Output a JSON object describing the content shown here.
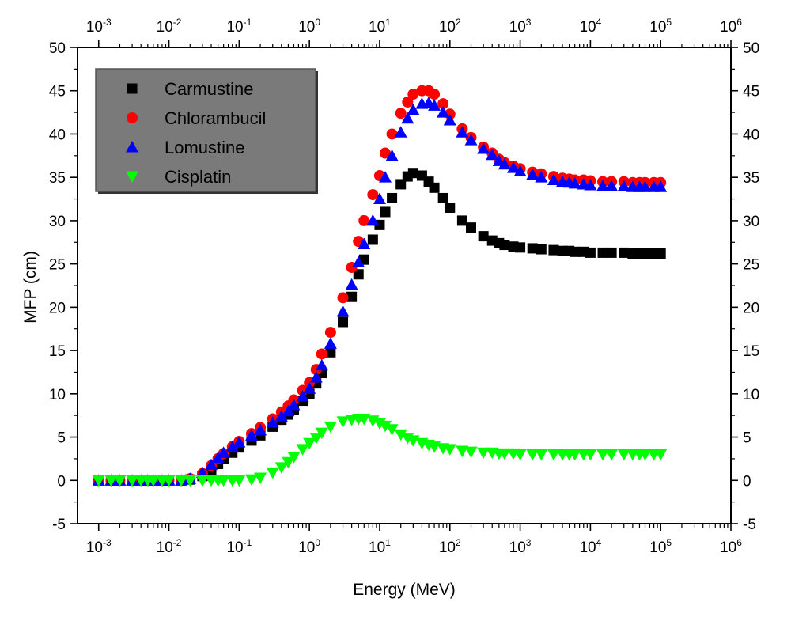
{
  "chart_data": {
    "type": "scatter",
    "title": "",
    "xlabel": "Energy (MeV)",
    "ylabel": "MFP (cm)",
    "xscale": "log",
    "xlim": [
      0.0005,
      1000000
    ],
    "ylim": [
      -5,
      50
    ],
    "x_ticks": [
      {
        "base": "10",
        "exp": "-3",
        "value": 0.001
      },
      {
        "base": "10",
        "exp": "-2",
        "value": 0.01
      },
      {
        "base": "10",
        "exp": "-1",
        "value": 0.1
      },
      {
        "base": "10",
        "exp": "0",
        "value": 1
      },
      {
        "base": "10",
        "exp": "1",
        "value": 10
      },
      {
        "base": "10",
        "exp": "2",
        "value": 100
      },
      {
        "base": "10",
        "exp": "3",
        "value": 1000
      },
      {
        "base": "10",
        "exp": "4",
        "value": 10000
      },
      {
        "base": "10",
        "exp": "5",
        "value": 100000
      },
      {
        "base": "10",
        "exp": "6",
        "value": 1000000
      }
    ],
    "y_ticks": [
      "-5",
      "0",
      "5",
      "10",
      "15",
      "20",
      "25",
      "30",
      "35",
      "40",
      "45",
      "50"
    ],
    "grid": false,
    "mirror_axes": true,
    "legend_position": "top-left",
    "legend_background": "#7a7a7a",
    "series": [
      {
        "name": "Carmustine",
        "color": "#000000",
        "marker": "square",
        "x": [
          0.001,
          0.0015,
          0.002,
          0.003,
          0.004,
          0.005,
          0.006,
          0.008,
          0.01,
          0.015,
          0.02,
          0.03,
          0.04,
          0.05,
          0.06,
          0.08,
          0.1,
          0.15,
          0.2,
          0.3,
          0.4,
          0.5,
          0.6,
          0.8,
          1,
          1.25,
          1.5,
          2,
          3,
          4,
          5,
          6,
          8,
          10,
          12,
          15,
          20,
          25,
          30,
          40,
          50,
          60,
          80,
          100,
          150,
          200,
          300,
          400,
          500,
          600,
          800,
          1000,
          1500,
          2000,
          3000,
          4000,
          5000,
          6000,
          8000,
          10000,
          15000,
          20000,
          30000,
          40000,
          50000,
          60000,
          80000,
          100000
        ],
        "values": [
          0,
          0,
          0,
          0,
          0,
          0,
          0,
          0,
          0,
          0,
          0.1,
          0.5,
          1.2,
          1.9,
          2.5,
          3.2,
          3.8,
          4.6,
          5.2,
          6.2,
          7.0,
          7.6,
          8.2,
          9.2,
          10.0,
          11.2,
          12.4,
          14.8,
          18.3,
          21.2,
          23.8,
          25.5,
          27.8,
          29.5,
          31.0,
          32.6,
          34.2,
          35.1,
          35.5,
          35.2,
          34.5,
          33.8,
          32.6,
          31.5,
          30.0,
          29.2,
          28.2,
          27.7,
          27.4,
          27.2,
          27.0,
          26.9,
          26.8,
          26.7,
          26.6,
          26.5,
          26.5,
          26.4,
          26.4,
          26.3,
          26.3,
          26.3,
          26.3,
          26.2,
          26.2,
          26.2,
          26.2,
          26.2
        ]
      },
      {
        "name": "Chlorambucil",
        "color": "#ff0000",
        "marker": "circle",
        "x": [
          0.001,
          0.0015,
          0.002,
          0.003,
          0.004,
          0.005,
          0.006,
          0.008,
          0.01,
          0.015,
          0.02,
          0.03,
          0.04,
          0.05,
          0.06,
          0.08,
          0.1,
          0.15,
          0.2,
          0.3,
          0.4,
          0.5,
          0.6,
          0.8,
          1,
          1.25,
          1.5,
          2,
          3,
          4,
          5,
          6,
          8,
          10,
          12,
          15,
          20,
          25,
          30,
          40,
          50,
          60,
          80,
          100,
          150,
          200,
          300,
          400,
          500,
          600,
          800,
          1000,
          1500,
          2000,
          3000,
          4000,
          5000,
          6000,
          8000,
          10000,
          15000,
          20000,
          30000,
          40000,
          50000,
          60000,
          80000,
          100000
        ],
        "values": [
          0,
          0,
          0,
          0,
          0,
          0,
          0,
          0,
          0,
          0,
          0.2,
          0.8,
          1.7,
          2.5,
          3.1,
          3.9,
          4.5,
          5.4,
          6.1,
          7.1,
          7.9,
          8.6,
          9.3,
          10.4,
          11.3,
          12.8,
          14.6,
          17.1,
          21.1,
          24.6,
          27.6,
          30.0,
          33.0,
          35.2,
          37.8,
          40.0,
          42.4,
          43.7,
          44.6,
          45.0,
          45.0,
          44.6,
          43.5,
          42.3,
          40.6,
          39.6,
          38.5,
          37.8,
          37.1,
          36.7,
          36.3,
          36.0,
          35.6,
          35.4,
          35.1,
          34.9,
          34.8,
          34.7,
          34.7,
          34.6,
          34.5,
          34.5,
          34.5,
          34.4,
          34.4,
          34.4,
          34.4,
          34.4
        ]
      },
      {
        "name": "Lomustine",
        "color": "#0000ff",
        "marker": "triangle-up",
        "x": [
          0.001,
          0.0015,
          0.002,
          0.003,
          0.004,
          0.005,
          0.006,
          0.008,
          0.01,
          0.015,
          0.02,
          0.03,
          0.04,
          0.05,
          0.06,
          0.08,
          0.1,
          0.15,
          0.2,
          0.3,
          0.4,
          0.5,
          0.6,
          0.8,
          1,
          1.25,
          1.5,
          2,
          3,
          4,
          5,
          6,
          8,
          10,
          12,
          15,
          20,
          25,
          30,
          40,
          50,
          60,
          80,
          100,
          150,
          200,
          300,
          400,
          500,
          600,
          800,
          1000,
          1500,
          2000,
          3000,
          4000,
          5000,
          6000,
          8000,
          10000,
          15000,
          20000,
          30000,
          40000,
          50000,
          60000,
          80000,
          100000
        ],
        "values": [
          0,
          0,
          0,
          0,
          0,
          0,
          0,
          0,
          0,
          0,
          0.2,
          0.9,
          1.8,
          2.6,
          3.2,
          3.9,
          4.4,
          5.2,
          5.8,
          6.7,
          7.4,
          8.0,
          8.7,
          9.7,
          10.6,
          11.9,
          13.3,
          15.8,
          19.5,
          22.6,
          25.2,
          27.3,
          30.0,
          32.5,
          35.0,
          37.5,
          40.2,
          41.8,
          42.8,
          43.5,
          43.6,
          43.3,
          42.5,
          41.6,
          40.2,
          39.3,
          38.3,
          37.6,
          36.9,
          36.5,
          36.1,
          35.7,
          35.3,
          35.0,
          34.7,
          34.5,
          34.4,
          34.3,
          34.2,
          34.1,
          34.0,
          34.0,
          34.0,
          33.9,
          33.9,
          33.9,
          33.9,
          33.9
        ]
      },
      {
        "name": "Cisplatin",
        "color": "#00ff00",
        "marker": "triangle-down",
        "x": [
          0.001,
          0.0015,
          0.002,
          0.003,
          0.004,
          0.005,
          0.006,
          0.008,
          0.01,
          0.015,
          0.02,
          0.03,
          0.04,
          0.05,
          0.06,
          0.08,
          0.1,
          0.15,
          0.2,
          0.3,
          0.4,
          0.5,
          0.6,
          0.8,
          1,
          1.25,
          1.5,
          2,
          3,
          4,
          5,
          6,
          8,
          10,
          12,
          15,
          20,
          25,
          30,
          40,
          50,
          60,
          80,
          100,
          150,
          200,
          300,
          400,
          500,
          600,
          800,
          1000,
          1500,
          2000,
          3000,
          4000,
          5000,
          6000,
          8000,
          10000,
          15000,
          20000,
          30000,
          40000,
          50000,
          60000,
          80000,
          100000
        ],
        "values": [
          0,
          0,
          0,
          0,
          0,
          0,
          0,
          0,
          0,
          0,
          0,
          0,
          0,
          0,
          0,
          0,
          0,
          0.1,
          0.3,
          0.9,
          1.5,
          2.1,
          2.7,
          3.6,
          4.3,
          4.9,
          5.5,
          6.2,
          6.8,
          7.0,
          7.1,
          7.1,
          6.9,
          6.6,
          6.3,
          5.9,
          5.3,
          4.9,
          4.6,
          4.3,
          4.1,
          3.9,
          3.7,
          3.6,
          3.4,
          3.3,
          3.2,
          3.2,
          3.1,
          3.1,
          3.1,
          3.0,
          3.0,
          3.0,
          3.0,
          3.0,
          3.0,
          3.0,
          3.0,
          3.0,
          3.0,
          3.0,
          3.0,
          3.0,
          3.0,
          3.0,
          3.0,
          3.0
        ]
      }
    ]
  }
}
